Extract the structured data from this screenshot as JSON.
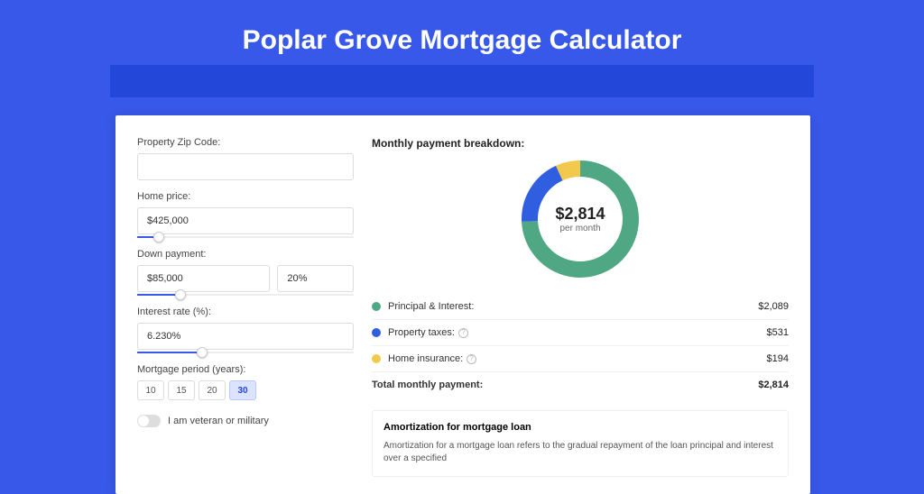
{
  "title": "Poplar Grove Mortgage Calculator",
  "form": {
    "zip": {
      "label": "Property Zip Code:",
      "value": ""
    },
    "home_price": {
      "label": "Home price:",
      "value": "$425,000",
      "slider_pct": 10
    },
    "down_payment": {
      "label": "Down payment:",
      "amount": "$85,000",
      "percent": "20%",
      "slider_pct": 20
    },
    "interest": {
      "label": "Interest rate (%):",
      "value": "6.230%",
      "slider_pct": 30
    },
    "period": {
      "label": "Mortgage period (years):",
      "options": [
        "10",
        "15",
        "20",
        "30"
      ],
      "selected": "30"
    },
    "veteran": {
      "label": "I am veteran or military",
      "on": false
    }
  },
  "breakdown": {
    "title": "Monthly payment breakdown:",
    "donut": {
      "amount": "$2,814",
      "sub": "per month",
      "segments": [
        {
          "color": "#4fa883",
          "pct": 74.2
        },
        {
          "color": "#2f5ee0",
          "pct": 18.9
        },
        {
          "color": "#f2c94c",
          "pct": 6.9
        }
      ],
      "stroke_width": 18,
      "radius": 56
    },
    "rows": [
      {
        "dot": "#4fa883",
        "label": "Principal & Interest:",
        "value": "$2,089",
        "info": false
      },
      {
        "dot": "#2f5ee0",
        "label": "Property taxes:",
        "value": "$531",
        "info": true
      },
      {
        "dot": "#f2c94c",
        "label": "Home insurance:",
        "value": "$194",
        "info": true
      }
    ],
    "total": {
      "label": "Total monthly payment:",
      "value": "$2,814"
    }
  },
  "amort": {
    "title": "Amortization for mortgage loan",
    "text": "Amortization for a mortgage loan refers to the gradual repayment of the loan principal and interest over a specified"
  }
}
